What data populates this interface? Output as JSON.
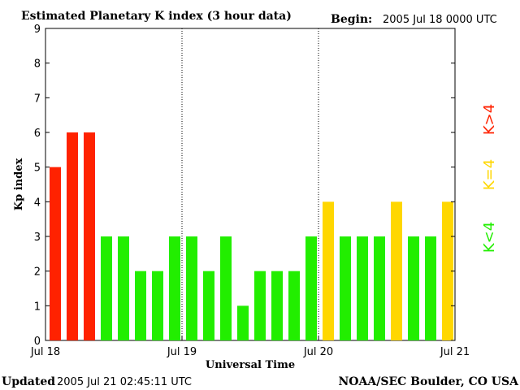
{
  "chart_data": {
    "type": "bar",
    "title": "Estimated Planetary K index (3 hour data)",
    "begin_label": "Begin:",
    "begin_value": "2005 Jul 18 0000 UTC",
    "ylabel": "Kp index",
    "xlabel": "Universal Time",
    "ylim": [
      0,
      9
    ],
    "yticks": [
      "0",
      "1",
      "2",
      "3",
      "4",
      "5",
      "6",
      "7",
      "8",
      "9"
    ],
    "xtick_labels": [
      "Jul 18",
      "Jul 19",
      "Jul 20",
      "Jul 21"
    ],
    "values": [
      5,
      6,
      6,
      3,
      3,
      2,
      2,
      3,
      3,
      2,
      3,
      1,
      2,
      2,
      2,
      3,
      4,
      3,
      3,
      3,
      4,
      3,
      3,
      4
    ],
    "legend": [
      {
        "label": "K>4",
        "color": "#ff2200"
      },
      {
        "label": "K=4",
        "color": "#ffd700"
      },
      {
        "label": "K<4",
        "color": "#22ee00"
      }
    ],
    "grid": false
  },
  "footer": {
    "updated_label": "Updated",
    "updated_value": "2005 Jul 21 02:45:11 UTC",
    "source": "NOAA/SEC Boulder, CO USA"
  }
}
